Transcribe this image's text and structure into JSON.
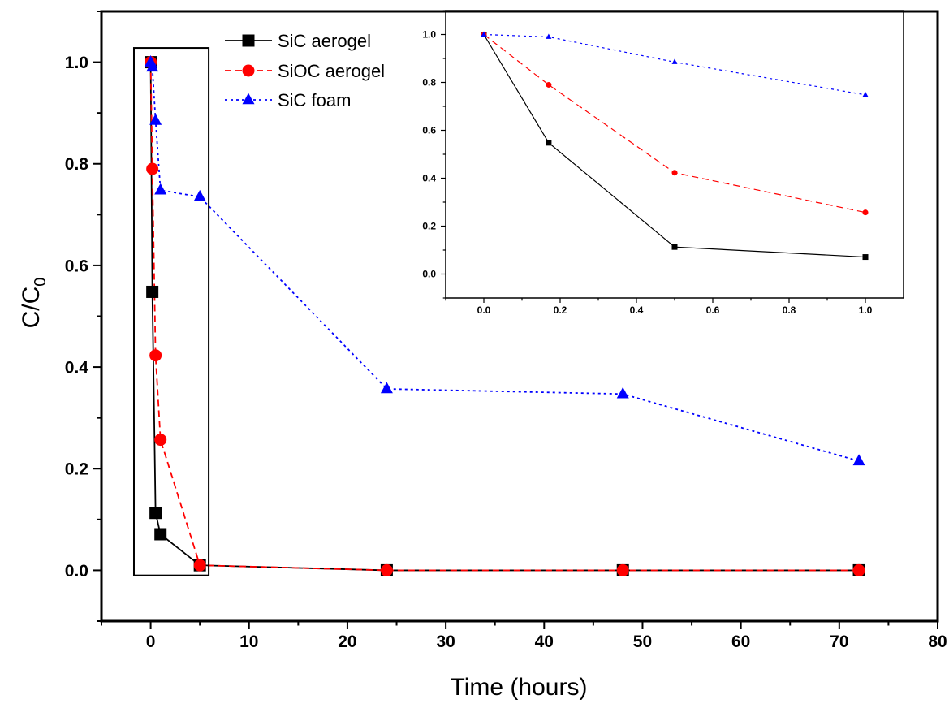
{
  "chart_data": [
    {
      "id": "main",
      "type": "line",
      "xlabel": "Time (hours)",
      "ylabel": "C/C",
      "ylabel_subscript": "0",
      "xlim": [
        -5,
        80
      ],
      "ylim": [
        -0.1,
        1.1
      ],
      "x_ticks": [
        0,
        10,
        20,
        30,
        40,
        50,
        60,
        70,
        80
      ],
      "x_tick_labels": [
        "0",
        "10",
        "20",
        "30",
        "40",
        "50",
        "60",
        "70",
        "80"
      ],
      "y_ticks": [
        0.0,
        0.2,
        0.4,
        0.6,
        0.8,
        1.0
      ],
      "y_tick_labels": [
        "0.0",
        "0.2",
        "0.4",
        "0.6",
        "0.8",
        "1.0"
      ],
      "grid": false,
      "legend_position": "top-left",
      "series": [
        {
          "name": "SiC aerogel",
          "color": "#000000",
          "marker": "square",
          "line": "solid",
          "x": [
            0,
            0.17,
            0.5,
            1,
            5,
            24,
            48,
            72
          ],
          "y": [
            1.0,
            0.548,
            0.113,
            0.071,
            0.01,
            0.0,
            0.0,
            0.0
          ]
        },
        {
          "name": "SiOC aerogel",
          "color": "#ff0000",
          "marker": "circle",
          "line": "dashed",
          "x": [
            0,
            0.17,
            0.5,
            1,
            5,
            24,
            48,
            72
          ],
          "y": [
            1.0,
            0.79,
            0.423,
            0.257,
            0.01,
            0.0,
            0.0,
            0.0
          ]
        },
        {
          "name": "SiC foam",
          "color": "#0000ff",
          "marker": "triangle",
          "line": "dotted",
          "x": [
            0,
            0.17,
            0.5,
            1,
            5,
            24,
            48,
            72
          ],
          "y": [
            1.0,
            0.99,
            0.885,
            0.748,
            0.735,
            0.357,
            0.347,
            0.215
          ]
        }
      ],
      "annotation": "rectangle highlighting x 0 to 5"
    },
    {
      "id": "inset",
      "type": "line",
      "xlim": [
        -0.1,
        1.1
      ],
      "ylim": [
        -0.1,
        1.1
      ],
      "x_ticks": [
        0.0,
        0.2,
        0.4,
        0.6,
        0.8,
        1.0
      ],
      "x_tick_labels": [
        "0.0",
        "0.2",
        "0.4",
        "0.6",
        "0.8",
        "1.0"
      ],
      "y_ticks": [
        0.0,
        0.2,
        0.4,
        0.6,
        0.8,
        1.0
      ],
      "y_tick_labels": [
        "0.0",
        "0.2",
        "0.4",
        "0.6",
        "0.8",
        "1.0"
      ],
      "grid": false,
      "series": [
        {
          "color": "#000000",
          "marker": "square",
          "line": "solid",
          "x": [
            0,
            0.17,
            0.5,
            1.0
          ],
          "y": [
            1.0,
            0.548,
            0.113,
            0.071
          ]
        },
        {
          "color": "#ff0000",
          "marker": "circle",
          "line": "dashed",
          "x": [
            0,
            0.17,
            0.5,
            1.0
          ],
          "y": [
            1.0,
            0.79,
            0.423,
            0.257
          ]
        },
        {
          "color": "#0000ff",
          "marker": "triangle",
          "line": "dotted",
          "x": [
            0,
            0.17,
            0.5,
            1.0
          ],
          "y": [
            1.0,
            0.99,
            0.885,
            0.748
          ]
        }
      ]
    }
  ]
}
